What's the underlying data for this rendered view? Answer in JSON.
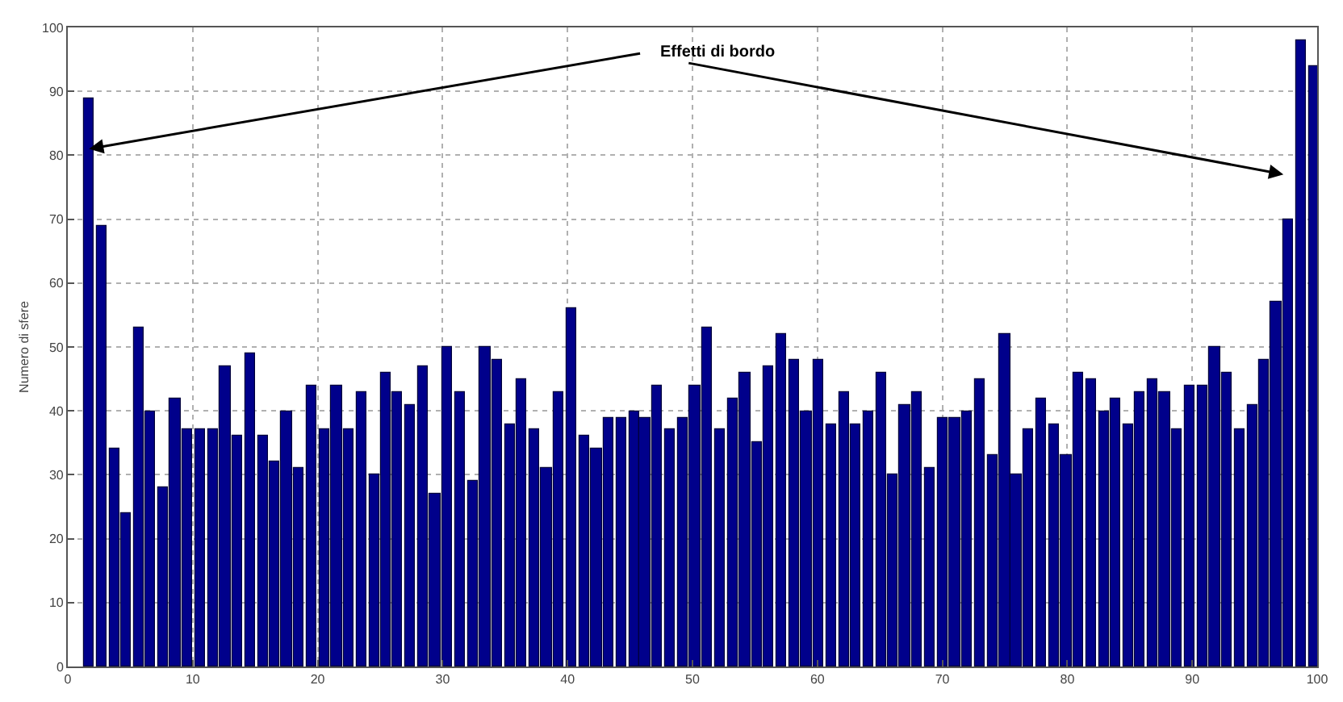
{
  "chart_data": {
    "type": "bar",
    "ylabel": "Numero di sfere",
    "x": [
      1.7,
      2.7,
      3.7,
      4.7,
      5.7,
      6.6,
      7.6,
      8.6,
      9.6,
      10.6,
      11.6,
      12.6,
      13.6,
      14.6,
      15.6,
      16.5,
      17.5,
      18.5,
      19.5,
      20.5,
      21.5,
      22.5,
      23.5,
      24.5,
      25.5,
      26.4,
      27.4,
      28.4,
      29.4,
      30.4,
      31.4,
      32.4,
      33.4,
      34.4,
      35.4,
      36.3,
      37.3,
      38.3,
      39.3,
      40.3,
      41.3,
      42.3,
      43.3,
      44.3,
      45.3,
      46.2,
      47.2,
      48.2,
      49.2,
      50.2,
      51.2,
      52.2,
      53.2,
      54.2,
      55.2,
      56.1,
      57.1,
      58.1,
      59.1,
      60.1,
      61.1,
      62.1,
      63.1,
      64.1,
      65.1,
      66.0,
      67.0,
      68.0,
      69.0,
      70.0,
      71.0,
      72.0,
      73.0,
      74.0,
      75.0,
      75.9,
      76.9,
      77.9,
      78.9,
      79.9,
      80.9,
      81.9,
      82.9,
      83.9,
      84.9,
      85.8,
      86.8,
      87.8,
      88.8,
      89.8,
      90.8,
      91.8,
      92.8,
      93.8,
      94.8,
      95.7,
      96.7,
      97.7,
      98.7,
      99.7
    ],
    "values": [
      89,
      69,
      34,
      24,
      53,
      40,
      28,
      42,
      37,
      37,
      37,
      47,
      36,
      49,
      36,
      32,
      40,
      31,
      44,
      37,
      44,
      37,
      43,
      30,
      46,
      43,
      41,
      47,
      27,
      50,
      43,
      29,
      50,
      48,
      38,
      45,
      37,
      31,
      43,
      56,
      36,
      34,
      39,
      39,
      40,
      39,
      44,
      37,
      39,
      44,
      53,
      37,
      42,
      46,
      35,
      47,
      52,
      48,
      40,
      48,
      38,
      43,
      38,
      40,
      46,
      30,
      41,
      43,
      31,
      39,
      39,
      40,
      45,
      33,
      52,
      30,
      37,
      42,
      38,
      33,
      46,
      45,
      40,
      42,
      38,
      43,
      45,
      43,
      37,
      44,
      44,
      50,
      46,
      37,
      41,
      48,
      57,
      70,
      98,
      94
    ],
    "color": "#00008b",
    "xlim": [
      0,
      100
    ],
    "xticks": [
      0,
      10,
      20,
      30,
      40,
      50,
      60,
      70,
      80,
      90,
      100
    ],
    "ylim": [
      0,
      100
    ],
    "yticks": [
      0,
      10,
      20,
      30,
      40,
      50,
      60,
      70,
      80,
      90,
      100
    ],
    "grid": true,
    "annotations": [
      "Effetti di bordo"
    ]
  }
}
